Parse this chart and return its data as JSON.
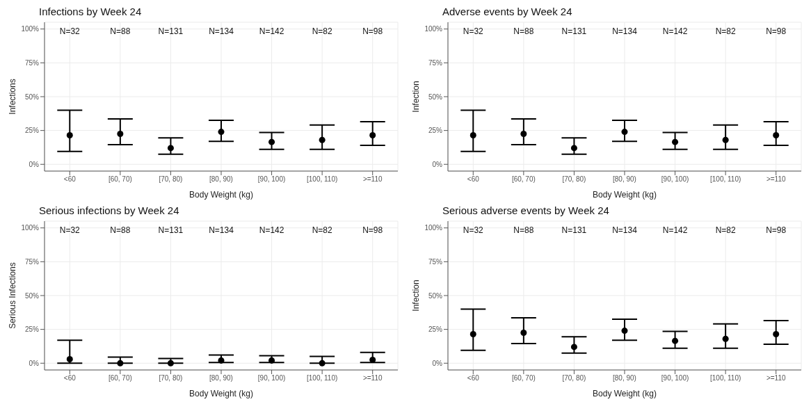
{
  "chart_data": [
    {
      "type": "scatter",
      "title": "Infections by Week 24",
      "xlabel": "Body Weight (kg)",
      "ylabel": "Infections",
      "categories": [
        "<60",
        "[60, 70)",
        "[70, 80)",
        "[80, 90)",
        "[90, 100)",
        "[100, 110)",
        ">=110"
      ],
      "series": [
        {
          "color": "#000000",
          "values": [
            21.5,
            22.5,
            12,
            24,
            16.5,
            18,
            21.5
          ],
          "errors": [
            [
              9.5,
              40
            ],
            [
              14.5,
              33.5
            ],
            [
              7.5,
              19.5
            ],
            [
              17,
              32.5
            ],
            [
              11,
              23.5
            ],
            [
              11,
              29
            ],
            [
              14,
              31.5
            ]
          ]
        }
      ],
      "ylim": [
        -5,
        105
      ],
      "yticks": [
        {
          "value": 0,
          "label": "0%"
        },
        {
          "value": 25,
          "label": "25%"
        },
        {
          "value": 50,
          "label": "50%"
        },
        {
          "value": 75,
          "label": "75%"
        },
        {
          "value": 100,
          "label": "100%"
        }
      ],
      "grid": true,
      "marker": "circle",
      "annotations": [
        "N=32",
        "N=88",
        "N=131",
        "N=134",
        "N=142",
        "N=82",
        "N=98"
      ]
    },
    {
      "type": "scatter",
      "title": "Adverse events by Week 24",
      "xlabel": "Body Weight (kg)",
      "ylabel": "Infection",
      "categories": [
        "<60",
        "[60, 70)",
        "[70, 80)",
        "[80, 90)",
        "[90, 100)",
        "[100, 110)",
        ">=110"
      ],
      "series": [
        {
          "color": "#000000",
          "values": [
            21.5,
            22.5,
            12,
            24,
            16.5,
            18,
            21.5
          ],
          "errors": [
            [
              9.5,
              40
            ],
            [
              14.5,
              33.5
            ],
            [
              7.5,
              19.5
            ],
            [
              17,
              32.5
            ],
            [
              11,
              23.5
            ],
            [
              11,
              29
            ],
            [
              14,
              31.5
            ]
          ]
        }
      ],
      "ylim": [
        -5,
        105
      ],
      "yticks": [
        {
          "value": 0,
          "label": "0%"
        },
        {
          "value": 25,
          "label": "25%"
        },
        {
          "value": 50,
          "label": "50%"
        },
        {
          "value": 75,
          "label": "75%"
        },
        {
          "value": 100,
          "label": "100%"
        }
      ],
      "grid": true,
      "marker": "circle",
      "annotations": [
        "N=32",
        "N=88",
        "N=131",
        "N=134",
        "N=142",
        "N=82",
        "N=98"
      ]
    },
    {
      "type": "scatter",
      "title": "Serious infections by Week 24",
      "xlabel": "Body Weight (kg)",
      "ylabel": "Serious Infections",
      "categories": [
        "<60",
        "[60, 70)",
        "[70, 80)",
        "[80, 90)",
        "[90, 100)",
        "[100, 110)",
        ">=110"
      ],
      "series": [
        {
          "color": "#000000",
          "values": [
            3,
            0,
            0,
            2,
            2,
            0,
            2.5
          ],
          "errors": [
            [
              0,
              17
            ],
            [
              0,
              4.5
            ],
            [
              0,
              3.5
            ],
            [
              0.5,
              6
            ],
            [
              0.5,
              5.5
            ],
            [
              0,
              5
            ],
            [
              0.5,
              8
            ]
          ]
        }
      ],
      "ylim": [
        -5,
        105
      ],
      "yticks": [
        {
          "value": 0,
          "label": "0%"
        },
        {
          "value": 25,
          "label": "25%"
        },
        {
          "value": 50,
          "label": "50%"
        },
        {
          "value": 75,
          "label": "75%"
        },
        {
          "value": 100,
          "label": "100%"
        }
      ],
      "grid": true,
      "marker": "circle",
      "annotations": [
        "N=32",
        "N=88",
        "N=131",
        "N=134",
        "N=142",
        "N=82",
        "N=98"
      ]
    },
    {
      "type": "scatter",
      "title": "Serious adverse events by Week 24",
      "xlabel": "Body Weight (kg)",
      "ylabel": "Infection",
      "categories": [
        "<60",
        "[60, 70)",
        "[70, 80)",
        "[80, 90)",
        "[90, 100)",
        "[100, 110)",
        ">=110"
      ],
      "series": [
        {
          "color": "#000000",
          "values": [
            21.5,
            22.5,
            12,
            24,
            16.5,
            18,
            21.5
          ],
          "errors": [
            [
              9.5,
              40
            ],
            [
              14.5,
              33.5
            ],
            [
              7.5,
              19.5
            ],
            [
              17,
              32.5
            ],
            [
              11,
              23.5
            ],
            [
              11,
              29
            ],
            [
              14,
              31.5
            ]
          ]
        }
      ],
      "ylim": [
        -5,
        105
      ],
      "yticks": [
        {
          "value": 0,
          "label": "0%"
        },
        {
          "value": 25,
          "label": "25%"
        },
        {
          "value": 50,
          "label": "50%"
        },
        {
          "value": 75,
          "label": "75%"
        },
        {
          "value": 100,
          "label": "100%"
        }
      ],
      "grid": true,
      "marker": "circle",
      "annotations": [
        "N=32",
        "N=88",
        "N=131",
        "N=134",
        "N=142",
        "N=82",
        "N=98"
      ]
    }
  ]
}
